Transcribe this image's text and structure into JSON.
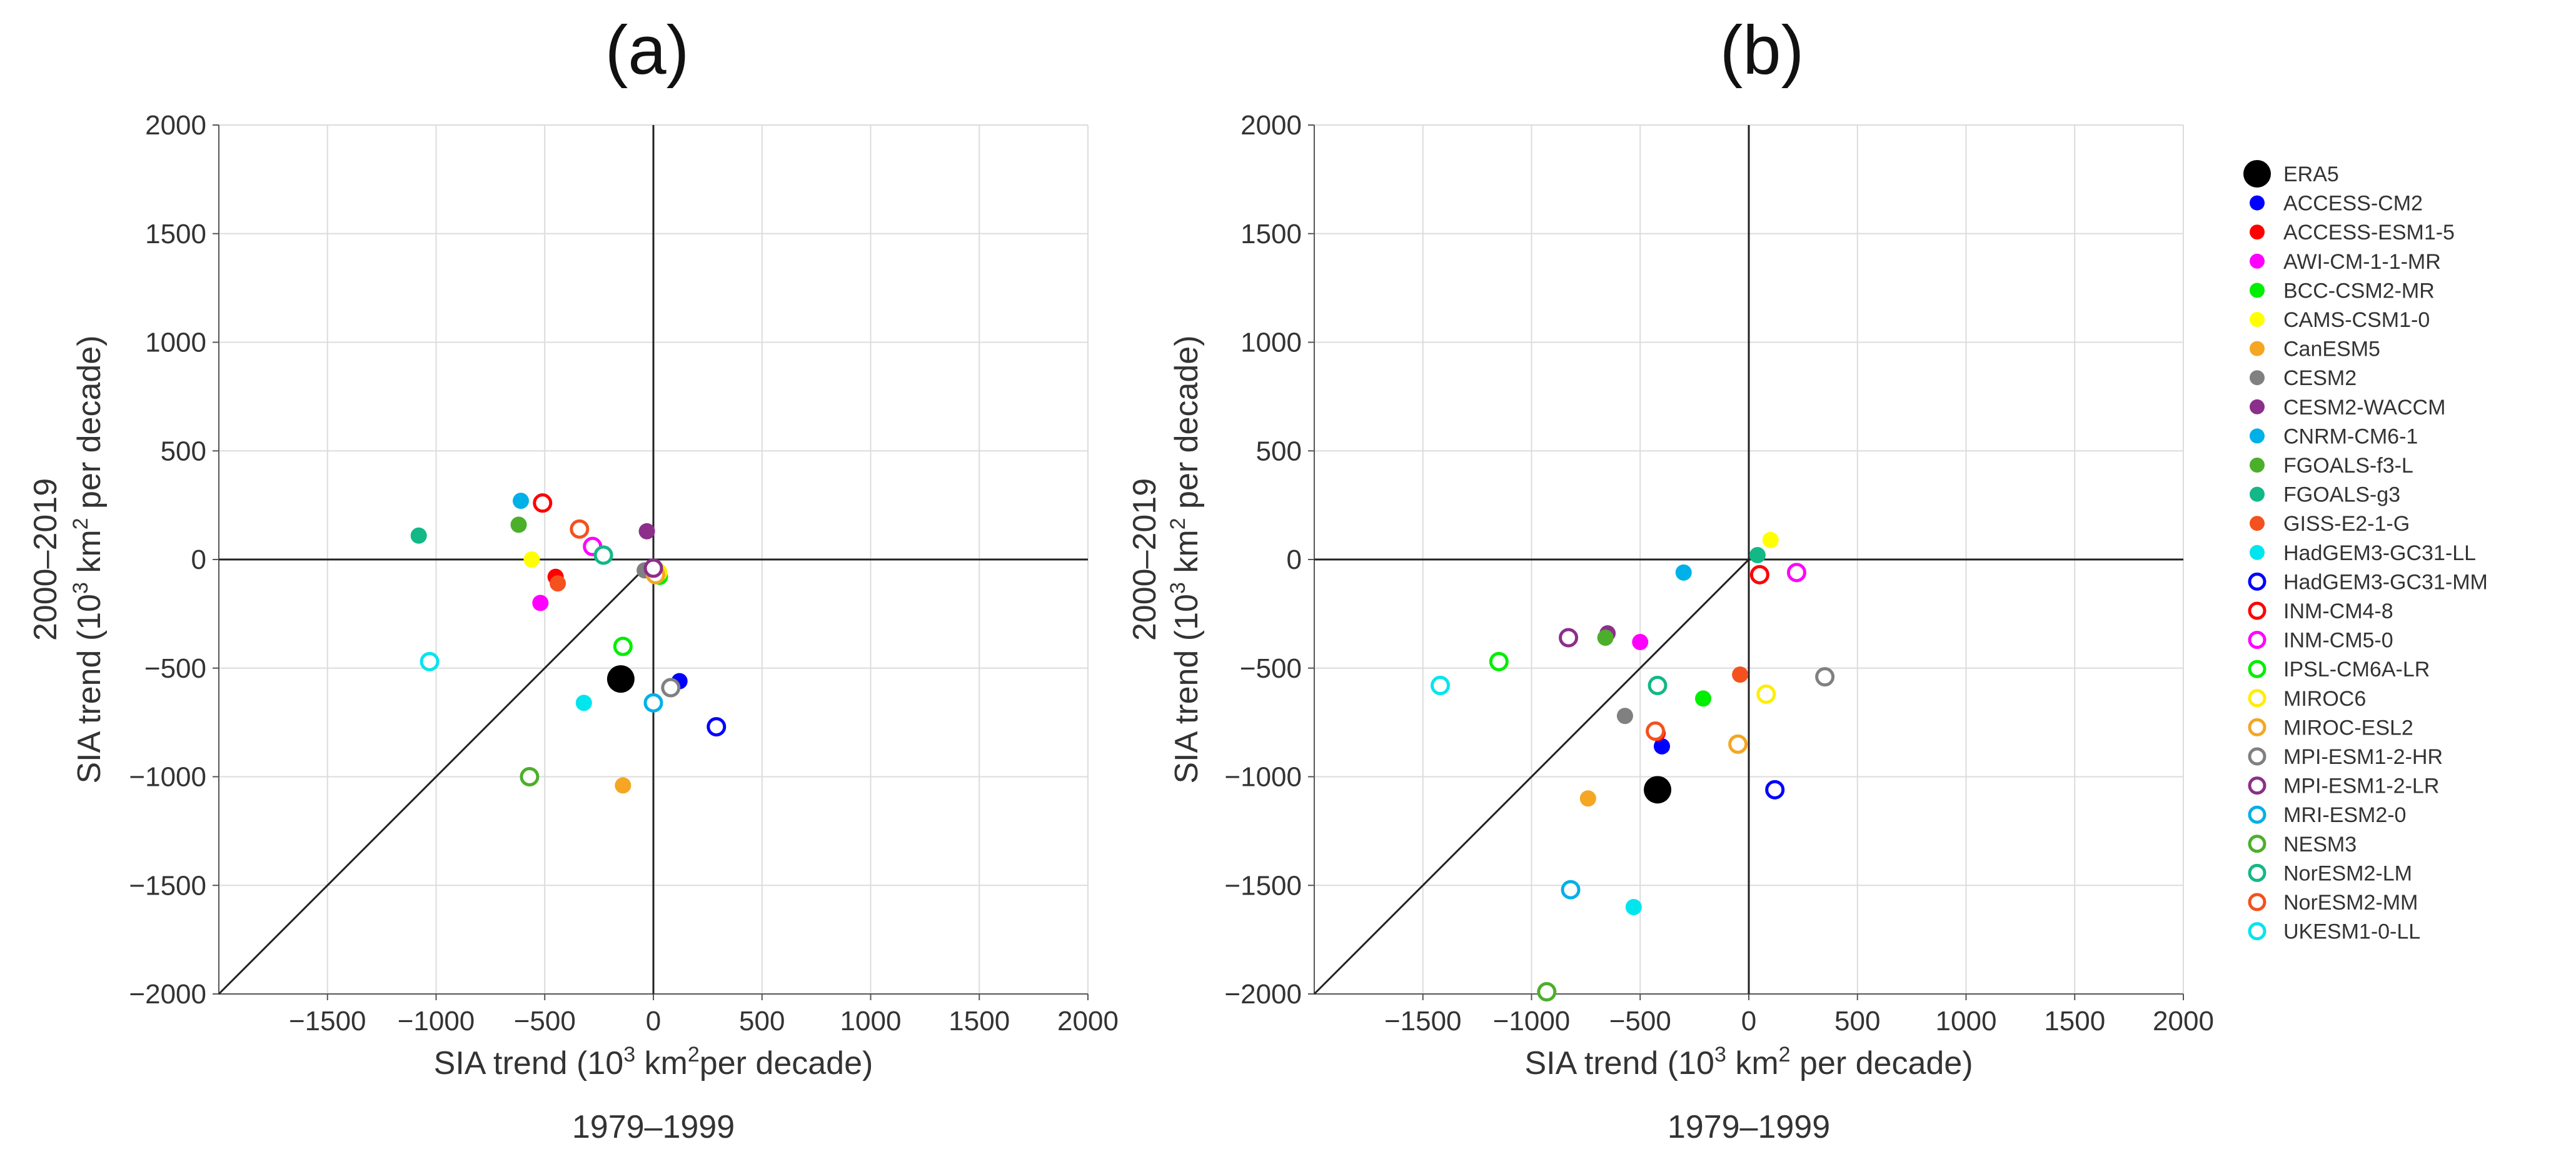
{
  "chart_data": [
    {
      "type": "scatter",
      "panel": "(a)",
      "xlabel_prefix": "SIA trend (10",
      "xlabel_exp": "3",
      "xlabel_suffix": " km",
      "xlabel_exp2": "2",
      "xlabel_tail": "per decade)",
      "ylabel_prefix": "SIA trend (10",
      "ylabel_exp": "3",
      "ylabel_suffix": " km",
      "ylabel_exp2": "2",
      "ylabel_tail": " per decade)",
      "x_period": "1979–1999",
      "y_period": "2000–2019",
      "xlim": [
        -2000,
        2000
      ],
      "ylim": [
        -2000,
        2000
      ],
      "xticks": [
        -1500,
        -1000,
        -500,
        0,
        500,
        1000,
        1500,
        2000
      ],
      "yticks": [
        -2000,
        -1500,
        -1000,
        -500,
        0,
        500,
        1000,
        1500,
        2000
      ],
      "xtick_labels": [
        "−1500",
        "−1000",
        "−500",
        "0",
        "500",
        "1000",
        "1500",
        "2000"
      ],
      "ytick_labels": [
        "−2000",
        "−1500",
        "−1000",
        "−500",
        "0",
        "500",
        "1000",
        "1500",
        "2000"
      ],
      "diagonal": "y = x",
      "grid": true,
      "points": [
        {
          "model": "ERA5",
          "x": -150,
          "y": -550
        },
        {
          "model": "ACCESS-CM2",
          "x": 120,
          "y": -560
        },
        {
          "model": "ACCESS-ESM1-5",
          "x": -450,
          "y": -80
        },
        {
          "model": "AWI-CM-1-1-MR",
          "x": -520,
          "y": -200
        },
        {
          "model": "BCC-CSM2-MR",
          "x": 30,
          "y": -80
        },
        {
          "model": "CAMS-CSM1-0",
          "x": -560,
          "y": 0
        },
        {
          "model": "CanESM5",
          "x": -140,
          "y": -1040
        },
        {
          "model": "CESM2",
          "x": -40,
          "y": -50
        },
        {
          "model": "CESM2-WACCM",
          "x": -30,
          "y": 130
        },
        {
          "model": "CNRM-CM6-1",
          "x": -610,
          "y": 270
        },
        {
          "model": "FGOALS-f3-L",
          "x": -620,
          "y": 160
        },
        {
          "model": "FGOALS-g3",
          "x": -1080,
          "y": 110
        },
        {
          "model": "GISS-E2-1-G",
          "x": -440,
          "y": -110
        },
        {
          "model": "HadGEM3-GC31-LL",
          "x": -320,
          "y": -660
        },
        {
          "model": "HadGEM3-GC31-MM",
          "x": 290,
          "y": -770
        },
        {
          "model": "INM-CM4-8",
          "x": -510,
          "y": 260
        },
        {
          "model": "INM-CM5-0",
          "x": -280,
          "y": 60
        },
        {
          "model": "IPSL-CM6A-LR",
          "x": -140,
          "y": -400
        },
        {
          "model": "MIROC6",
          "x": 20,
          "y": -60
        },
        {
          "model": "MIROC-ESL2",
          "x": 10,
          "y": -70
        },
        {
          "model": "MPI-ESM1-2-HR",
          "x": 80,
          "y": -590
        },
        {
          "model": "MPI-ESM1-2-LR",
          "x": 0,
          "y": -40
        },
        {
          "model": "MRI-ESM2-0",
          "x": 0,
          "y": -660
        },
        {
          "model": "NESM3",
          "x": -570,
          "y": -1000
        },
        {
          "model": "NorESM2-LM",
          "x": -230,
          "y": 20
        },
        {
          "model": "NorESM2-MM",
          "x": -340,
          "y": 140
        },
        {
          "model": "UKESM1-0-LL",
          "x": -1030,
          "y": -470
        }
      ]
    },
    {
      "type": "scatter",
      "panel": "(b)",
      "xlabel_prefix": "SIA trend (10",
      "xlabel_exp": "3",
      "xlabel_suffix": " km",
      "xlabel_exp2": "2",
      "xlabel_tail": " per decade)",
      "ylabel_prefix": "SIA trend (10",
      "ylabel_exp": "3",
      "ylabel_suffix": " km",
      "ylabel_exp2": "2",
      "ylabel_tail": " per decade)",
      "x_period": "1979–1999",
      "y_period": "2000–2019",
      "xlim": [
        -2000,
        2000
      ],
      "ylim": [
        -2000,
        2000
      ],
      "xticks": [
        -1500,
        -1000,
        -500,
        0,
        500,
        1000,
        1500,
        2000
      ],
      "yticks": [
        -2000,
        -1500,
        -1000,
        -500,
        0,
        500,
        1000,
        1500,
        2000
      ],
      "xtick_labels": [
        "−1500",
        "−1000",
        "−500",
        "0",
        "500",
        "1000",
        "1500",
        "2000"
      ],
      "ytick_labels": [
        "−2000",
        "−1500",
        "−1000",
        "−500",
        "0",
        "500",
        "1000",
        "1500",
        "2000"
      ],
      "diagonal": "y = x",
      "grid": true,
      "points": [
        {
          "model": "ERA5",
          "x": -420,
          "y": -1060
        },
        {
          "model": "ACCESS-CM2",
          "x": -400,
          "y": -860
        },
        {
          "model": "ACCESS-ESM1-5",
          "x": -420,
          "y": -800
        },
        {
          "model": "AWI-CM-1-1-MR",
          "x": -500,
          "y": -380
        },
        {
          "model": "BCC-CSM2-MR",
          "x": -210,
          "y": -640
        },
        {
          "model": "CAMS-CSM1-0",
          "x": 100,
          "y": 90
        },
        {
          "model": "CanESM5",
          "x": -740,
          "y": -1100
        },
        {
          "model": "CESM2",
          "x": -570,
          "y": -720
        },
        {
          "model": "CESM2-WACCM",
          "x": -650,
          "y": -340
        },
        {
          "model": "CNRM-CM6-1",
          "x": -300,
          "y": -60
        },
        {
          "model": "FGOALS-f3-L",
          "x": -660,
          "y": -360
        },
        {
          "model": "FGOALS-g3",
          "x": 40,
          "y": 20
        },
        {
          "model": "GISS-E2-1-G",
          "x": -40,
          "y": -530
        },
        {
          "model": "HadGEM3-GC31-LL",
          "x": -530,
          "y": -1600
        },
        {
          "model": "HadGEM3-GC31-MM",
          "x": 120,
          "y": -1060
        },
        {
          "model": "INM-CM4-8",
          "x": 50,
          "y": -70
        },
        {
          "model": "INM-CM5-0",
          "x": 220,
          "y": -60
        },
        {
          "model": "IPSL-CM6A-LR",
          "x": -1150,
          "y": -470
        },
        {
          "model": "MIROC6",
          "x": 80,
          "y": -620
        },
        {
          "model": "MIROC-ESL2",
          "x": -50,
          "y": -850
        },
        {
          "model": "MPI-ESM1-2-HR",
          "x": 350,
          "y": -540
        },
        {
          "model": "MPI-ESM1-2-LR",
          "x": -830,
          "y": -360
        },
        {
          "model": "MRI-ESM2-0",
          "x": -820,
          "y": -1520
        },
        {
          "model": "NESM3",
          "x": -930,
          "y": -1990
        },
        {
          "model": "NorESM2-LM",
          "x": -420,
          "y": -580
        },
        {
          "model": "NorESM2-MM",
          "x": -430,
          "y": -790
        },
        {
          "model": "UKESM1-0-LL",
          "x": -1420,
          "y": -580
        }
      ]
    }
  ],
  "legend": [
    {
      "name": "ERA5",
      "color": "#000000",
      "filled": true
    },
    {
      "name": "ACCESS-CM2",
      "color": "#0000ff",
      "filled": true
    },
    {
      "name": "ACCESS-ESM1-5",
      "color": "#ff0000",
      "filled": true
    },
    {
      "name": "AWI-CM-1-1-MR",
      "color": "#ff00ff",
      "filled": true
    },
    {
      "name": "BCC-CSM2-MR",
      "color": "#00ee00",
      "filled": true
    },
    {
      "name": "CAMS-CSM1-0",
      "color": "#ffff00",
      "filled": true
    },
    {
      "name": "CanESM5",
      "color": "#f5a623",
      "filled": true
    },
    {
      "name": "CESM2",
      "color": "#808080",
      "filled": true
    },
    {
      "name": "CESM2-WACCM",
      "color": "#8b2f8b",
      "filled": true
    },
    {
      "name": "CNRM-CM6-1",
      "color": "#00b0e8",
      "filled": true
    },
    {
      "name": "FGOALS-f3-L",
      "color": "#4caf2a",
      "filled": true
    },
    {
      "name": "FGOALS-g3",
      "color": "#12b886",
      "filled": true
    },
    {
      "name": "GISS-E2-1-G",
      "color": "#f4511e",
      "filled": true
    },
    {
      "name": "HadGEM3-GC31-LL",
      "color": "#00e5ee",
      "filled": true
    },
    {
      "name": "HadGEM3-GC31-MM",
      "color": "#0000ff",
      "filled": false
    },
    {
      "name": "INM-CM4-8",
      "color": "#ff0000",
      "filled": false
    },
    {
      "name": "INM-CM5-0",
      "color": "#ff00ff",
      "filled": false
    },
    {
      "name": "IPSL-CM6A-LR",
      "color": "#00ee00",
      "filled": false
    },
    {
      "name": "MIROC6",
      "color": "#ffee00",
      "filled": false
    },
    {
      "name": "MIROC-ESL2",
      "color": "#f5a623",
      "filled": false
    },
    {
      "name": "MPI-ESM1-2-HR",
      "color": "#808080",
      "filled": false
    },
    {
      "name": "MPI-ESM1-2-LR",
      "color": "#8b2f8b",
      "filled": false
    },
    {
      "name": "MRI-ESM2-0",
      "color": "#00b0e8",
      "filled": false
    },
    {
      "name": "NESM3",
      "color": "#4caf2a",
      "filled": false
    },
    {
      "name": "NorESM2-LM",
      "color": "#12b886",
      "filled": false
    },
    {
      "name": "NorESM2-MM",
      "color": "#f4511e",
      "filled": false
    },
    {
      "name": "UKESM1-0-LL",
      "color": "#00e5ee",
      "filled": false
    }
  ]
}
